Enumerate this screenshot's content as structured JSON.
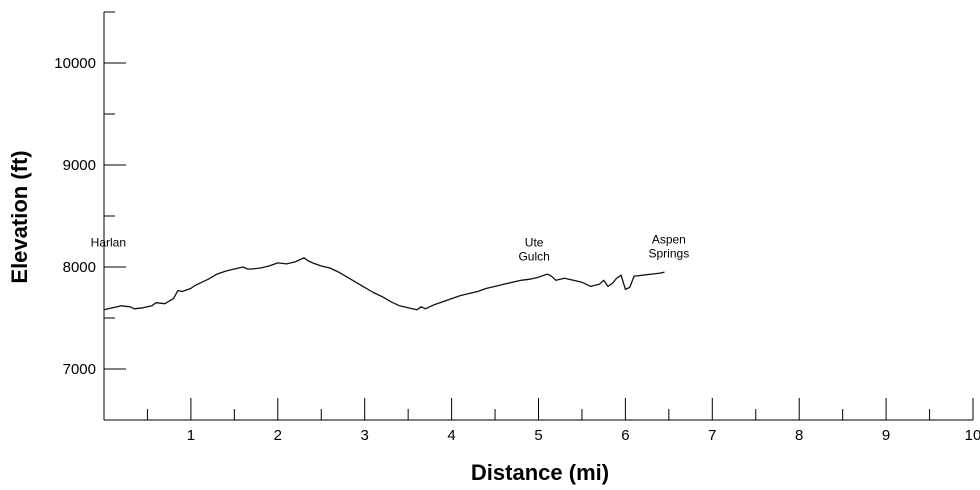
{
  "chart_data": {
    "type": "line",
    "xlabel": "Distance (mi)",
    "ylabel": "Elevation (ft)",
    "xlim": [
      0,
      10
    ],
    "ylim": [
      6500,
      10500
    ],
    "x_ticks": [
      1,
      2,
      3,
      4,
      5,
      6,
      7,
      8,
      9,
      10
    ],
    "x_minor_ticks": [
      0.5,
      1.5,
      2.5,
      3.5,
      4.5,
      5.5,
      6.5,
      7.5,
      8.5,
      9.5
    ],
    "y_ticks": [
      7000,
      8000,
      9000,
      10000
    ],
    "y_minor_ticks": [
      6500,
      7500,
      8500,
      9500,
      10500
    ],
    "grid": false,
    "series": [
      {
        "x": [
          0,
          0.1,
          0.2,
          0.3,
          0.35,
          0.45,
          0.55,
          0.6,
          0.7,
          0.8,
          0.85,
          0.9,
          1.0,
          1.05,
          1.1,
          1.2,
          1.3,
          1.4,
          1.5,
          1.6,
          1.65,
          1.7,
          1.8,
          1.9,
          2.0,
          2.1,
          2.2,
          2.3,
          2.35,
          2.4,
          2.5,
          2.6,
          2.7,
          2.8,
          2.9,
          3.0,
          3.1,
          3.2,
          3.3,
          3.4,
          3.5,
          3.55,
          3.6,
          3.65,
          3.7,
          3.8,
          3.9,
          4.0,
          4.1,
          4.2,
          4.3,
          4.4,
          4.5,
          4.6,
          4.7,
          4.8,
          4.9,
          5.0,
          5.1,
          5.15,
          5.2,
          5.3,
          5.35,
          5.4,
          5.5,
          5.55,
          5.6,
          5.7,
          5.75,
          5.8,
          5.85,
          5.9,
          5.95,
          6.0,
          6.05,
          6.1,
          6.2,
          6.3,
          6.4,
          6.45
        ],
        "y": [
          7580,
          7600,
          7620,
          7610,
          7590,
          7600,
          7620,
          7650,
          7640,
          7690,
          7770,
          7760,
          7790,
          7820,
          7840,
          7880,
          7930,
          7960,
          7980,
          8000,
          7980,
          7980,
          7990,
          8010,
          8040,
          8030,
          8050,
          8090,
          8060,
          8040,
          8010,
          7990,
          7950,
          7900,
          7850,
          7800,
          7750,
          7710,
          7660,
          7620,
          7600,
          7590,
          7580,
          7610,
          7590,
          7630,
          7660,
          7690,
          7720,
          7740,
          7760,
          7790,
          7810,
          7830,
          7850,
          7870,
          7880,
          7900,
          7930,
          7910,
          7870,
          7890,
          7880,
          7870,
          7850,
          7830,
          7810,
          7830,
          7870,
          7810,
          7840,
          7890,
          7920,
          7780,
          7800,
          7910,
          7920,
          7930,
          7940,
          7950
        ]
      }
    ],
    "annotations": [
      {
        "lines": [
          "Harlan"
        ],
        "x": 0.05,
        "y": 8200
      },
      {
        "lines": [
          "Ute",
          "Gulch"
        ],
        "x": 4.95,
        "y": 8200
      },
      {
        "lines": [
          "Aspen",
          "Springs"
        ],
        "x": 6.5,
        "y": 8230
      }
    ]
  }
}
